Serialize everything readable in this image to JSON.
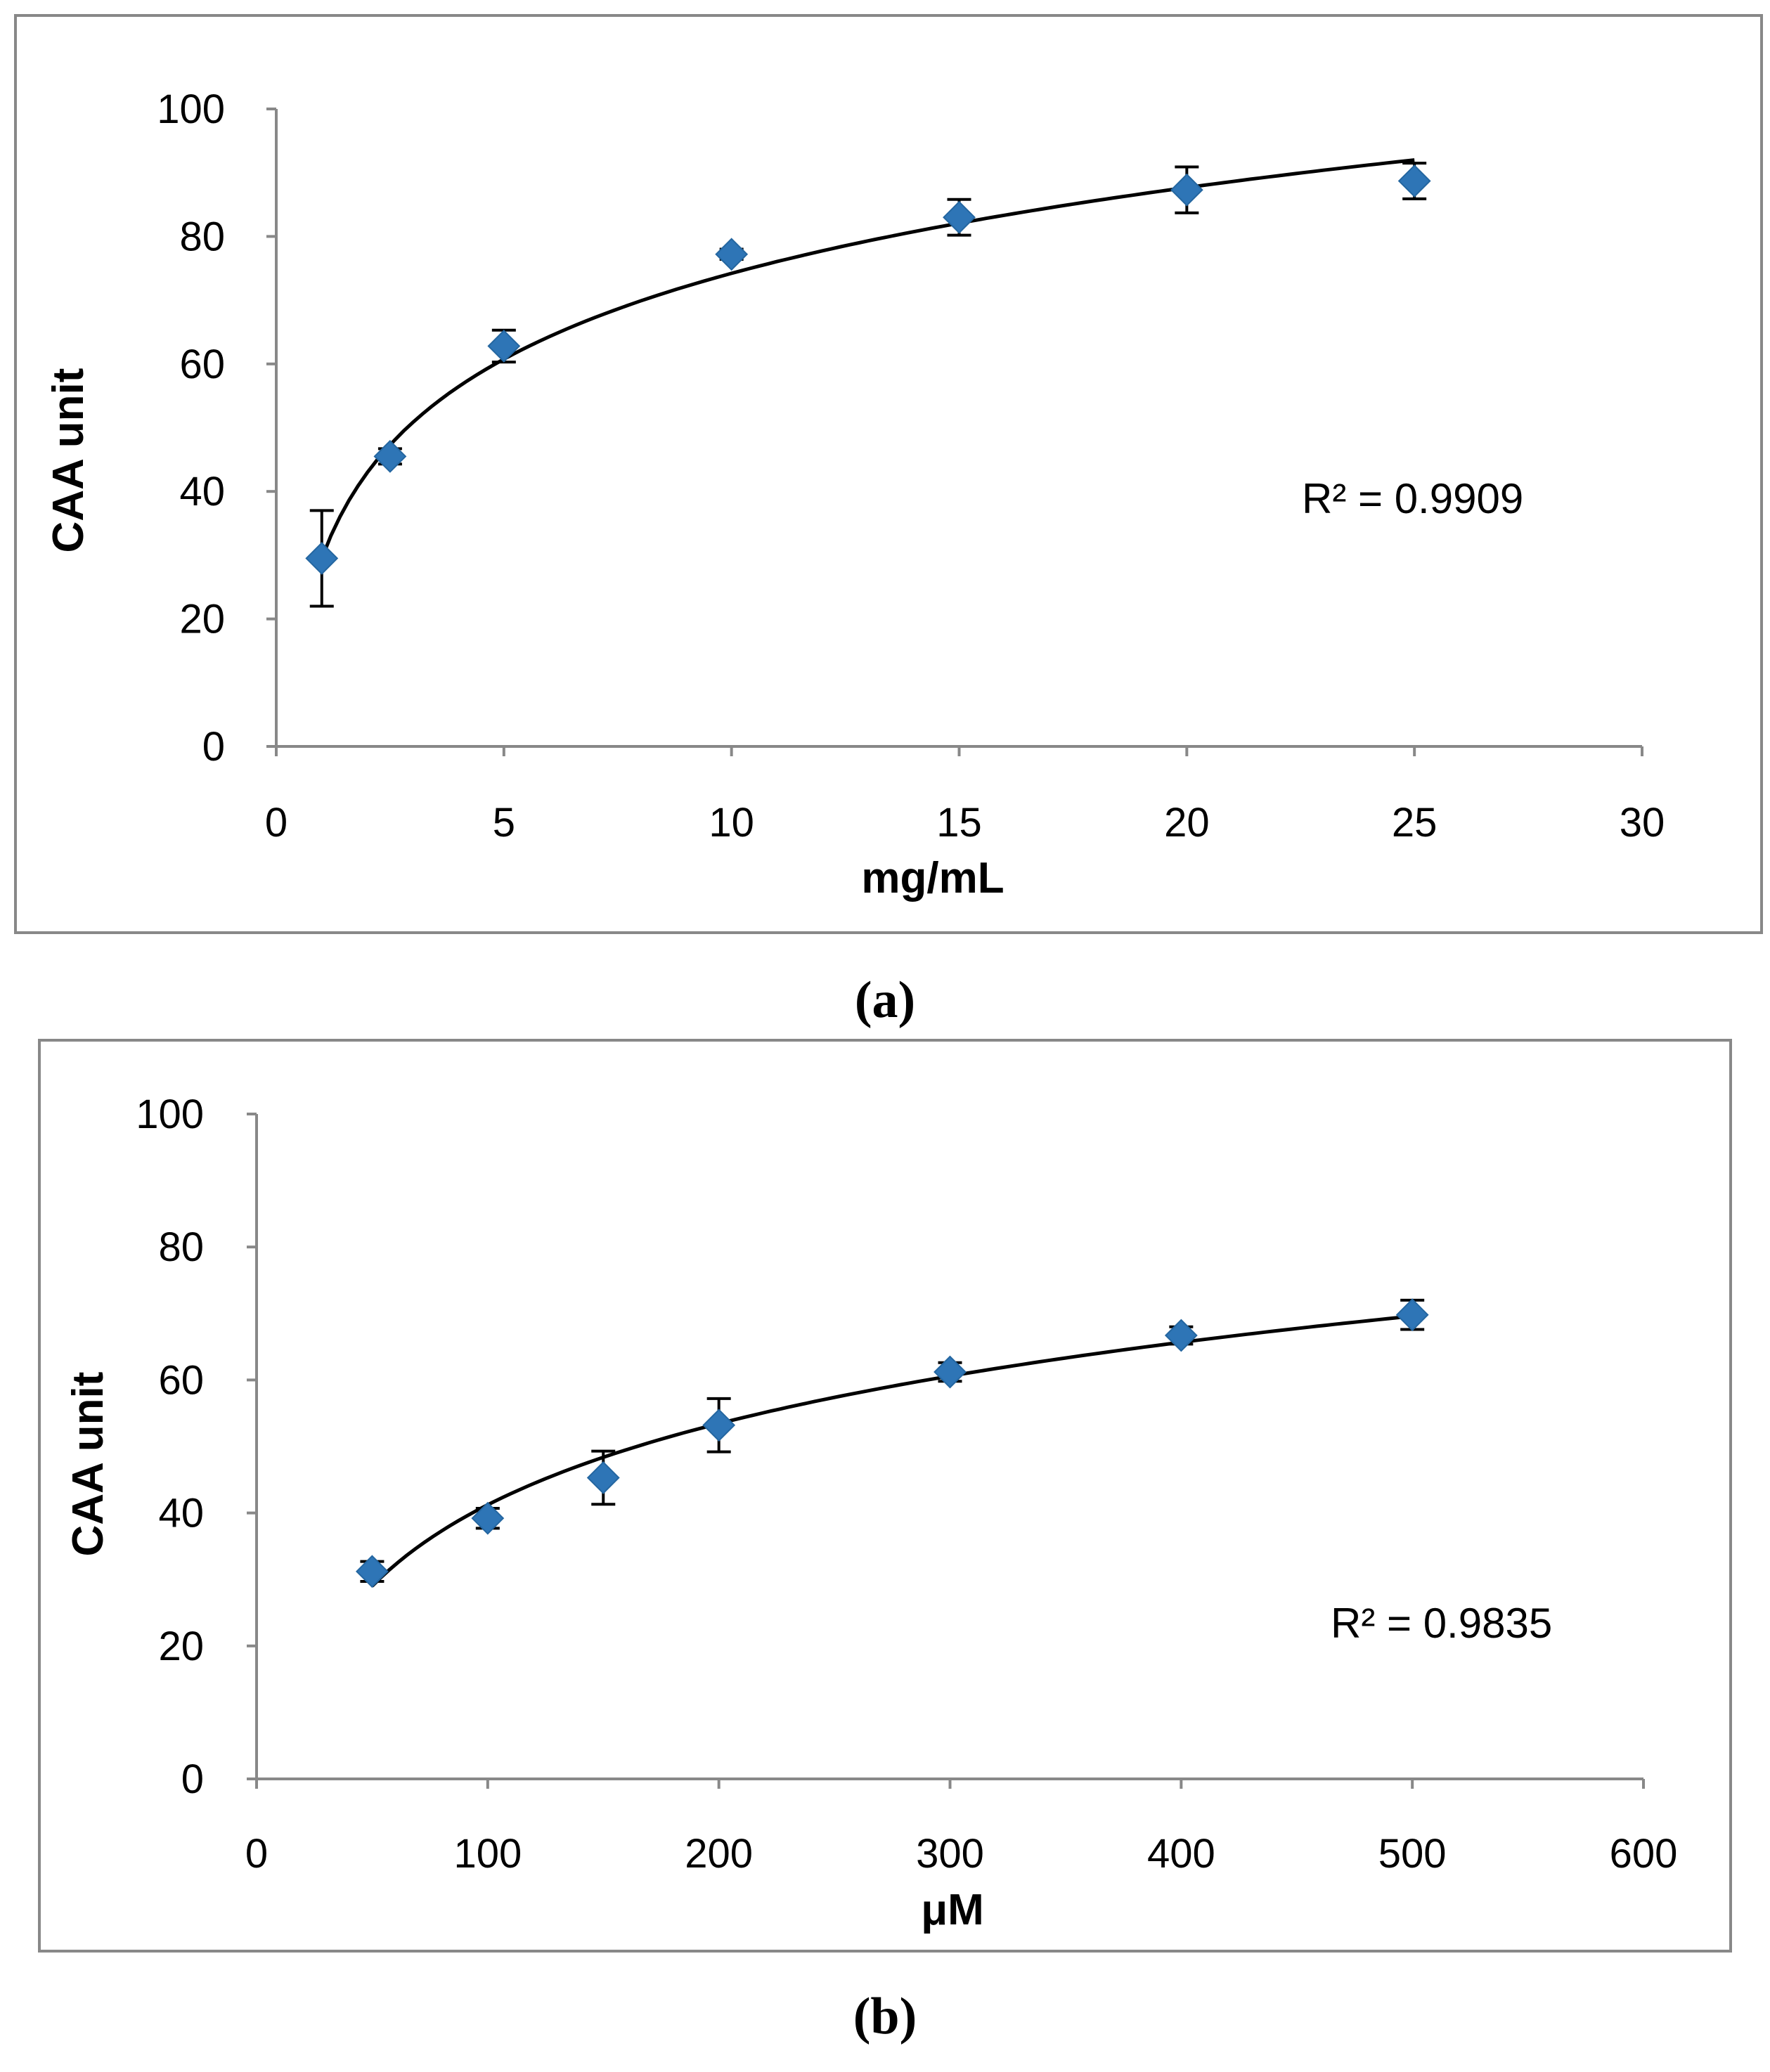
{
  "chart_data": [
    {
      "type": "scatter",
      "panel_label": "(a)",
      "xlabel": "mg/mL",
      "ylabel": "CAA unit",
      "xlim": [
        0,
        30
      ],
      "ylim": [
        0,
        100
      ],
      "xticks": [
        0,
        5,
        10,
        15,
        20,
        25,
        30
      ],
      "yticks": [
        0,
        20,
        40,
        60,
        80,
        100
      ],
      "grid": false,
      "marker_color": "#2E75B6",
      "x": [
        1,
        2.5,
        5,
        10,
        15,
        20,
        25
      ],
      "y": [
        29.5,
        45.5,
        62.8,
        77.2,
        83.0,
        87.3,
        88.7
      ],
      "error": [
        7.5,
        1.2,
        2.5,
        0.8,
        2.8,
        3.6,
        2.8
      ],
      "trendline": {
        "type": "logarithmic",
        "x_start": 1,
        "x_end": 25,
        "y_start": 29.5,
        "y_end": 92.0
      },
      "r2_text": "R² = 0.9909"
    },
    {
      "type": "scatter",
      "panel_label": "(b)",
      "xlabel": "μM",
      "ylabel": "CAA unit",
      "xlim": [
        0,
        600
      ],
      "ylim": [
        0,
        100
      ],
      "xticks": [
        0,
        100,
        200,
        300,
        400,
        500,
        600
      ],
      "yticks": [
        0,
        20,
        40,
        60,
        80,
        100
      ],
      "grid": false,
      "marker_color": "#2E75B6",
      "x": [
        50,
        100,
        150,
        200,
        300,
        400,
        500
      ],
      "y": [
        31.2,
        39.2,
        45.3,
        53.2,
        61.2,
        66.7,
        69.8
      ],
      "error": [
        1.5,
        1.5,
        4.0,
        4.0,
        1.4,
        1.3,
        2.2
      ],
      "trendline": {
        "type": "logarithmic",
        "x_start": 50,
        "x_end": 500,
        "y_start": 29.0,
        "y_end": 69.6
      },
      "r2_text": "R² = 0.9835"
    }
  ]
}
